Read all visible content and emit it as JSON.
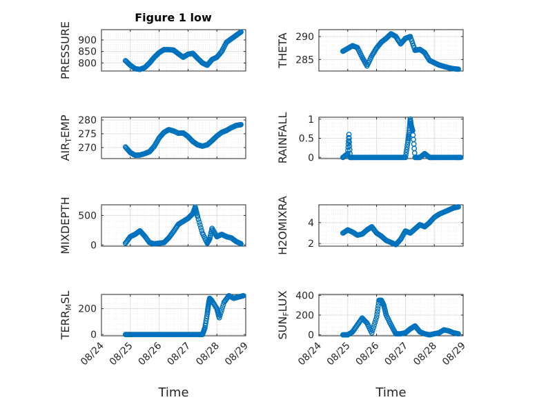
{
  "figure_title": "Figure 1 low",
  "marker_color": "#0072BD",
  "chart_data": [
    {
      "type": "scatter",
      "ylabel": "PRESSURE",
      "ylim": [
        765,
        945
      ],
      "yticks": [
        800,
        850,
        900
      ],
      "xlim": [
        "08/24",
        "08/29"
      ],
      "xtick_labels": [],
      "grid": true,
      "series": [
        {
          "x": [
            "08/24 20:00",
            "08/25 00:00",
            "08/25 04:00",
            "08/25 08:00",
            "08/25 12:00",
            "08/25 16:00",
            "08/25 20:00",
            "08/26 00:00",
            "08/26 04:00",
            "08/26 08:00",
            "08/26 12:00",
            "08/26 16:00",
            "08/26 20:00",
            "08/27 00:00",
            "08/27 04:00",
            "08/27 08:00",
            "08/27 12:00",
            "08/27 16:00",
            "08/27 20:00",
            "08/28 00:00",
            "08/28 04:00",
            "08/28 08:00",
            "08/28 12:00",
            "08/28 16:00",
            "08/28 20:00"
          ],
          "y": [
            810,
            790,
            775,
            772,
            780,
            800,
            825,
            845,
            858,
            858,
            856,
            840,
            825,
            838,
            842,
            820,
            800,
            790,
            815,
            825,
            850,
            890,
            905,
            920,
            935
          ]
        }
      ]
    },
    {
      "type": "scatter",
      "ylabel": "THETA",
      "ylim": [
        282.5,
        291.5
      ],
      "yticks": [
        285,
        290
      ],
      "xlim": [
        "08/24",
        "08/29"
      ],
      "xtick_labels": [],
      "grid": true,
      "series": [
        {
          "x": [
            "08/24 20:00",
            "08/25 00:00",
            "08/25 04:00",
            "08/25 08:00",
            "08/25 12:00",
            "08/25 16:00",
            "08/25 20:00",
            "08/26 00:00",
            "08/26 04:00",
            "08/26 08:00",
            "08/26 12:00",
            "08/26 16:00",
            "08/26 20:00",
            "08/27 00:00",
            "08/27 04:00",
            "08/27 08:00",
            "08/27 12:00",
            "08/27 16:00",
            "08/27 20:00",
            "08/28 00:00",
            "08/28 04:00",
            "08/28 08:00",
            "08/28 12:00",
            "08/28 16:00",
            "08/28 20:00"
          ],
          "y": [
            286.8,
            287.4,
            288.0,
            287.6,
            285.5,
            283.6,
            285.8,
            287.5,
            288.8,
            289.6,
            290.6,
            290.0,
            288.4,
            289.6,
            290.0,
            287.0,
            287.2,
            286.5,
            284.8,
            284.3,
            283.8,
            283.5,
            283.2,
            283.0,
            282.9
          ]
        }
      ]
    },
    {
      "type": "scatter",
      "ylabel": "AIR_TEMP",
      "ylim": [
        266,
        281
      ],
      "yticks": [
        270,
        275,
        280
      ],
      "xlim": [
        "08/24",
        "08/29"
      ],
      "xtick_labels": [],
      "grid": true,
      "series": [
        {
          "x": [
            "08/24 20:00",
            "08/25 00:00",
            "08/25 04:00",
            "08/25 08:00",
            "08/25 12:00",
            "08/25 16:00",
            "08/25 20:00",
            "08/26 00:00",
            "08/26 04:00",
            "08/26 08:00",
            "08/26 12:00",
            "08/26 16:00",
            "08/26 20:00",
            "08/27 00:00",
            "08/27 04:00",
            "08/27 08:00",
            "08/27 12:00",
            "08/27 16:00",
            "08/27 20:00",
            "08/28 00:00",
            "08/28 04:00",
            "08/28 08:00",
            "08/28 12:00",
            "08/28 16:00",
            "08/28 20:00"
          ],
          "y": [
            270.2,
            268.2,
            267.2,
            267.3,
            267.8,
            268.5,
            270.5,
            273.5,
            275.5,
            276.5,
            276.0,
            275.2,
            275.3,
            274.0,
            272.2,
            271.0,
            270.5,
            271.0,
            272.5,
            274.2,
            275.5,
            276.2,
            277.2,
            278.0,
            278.3
          ]
        }
      ]
    },
    {
      "type": "scatter",
      "ylabel": "RAINFALL",
      "ylim": [
        -0.03,
        1.05
      ],
      "yticks": [
        0,
        0.5,
        1
      ],
      "xlim": [
        "08/24",
        "08/29"
      ],
      "xtick_labels": [],
      "grid": true,
      "series": [
        {
          "x": [
            "08/24 20:00",
            "08/25 00:00",
            "08/25 01:00",
            "08/25 02:00",
            "08/25 06:00",
            "08/25 12:00",
            "08/25 18:00",
            "08/26 00:00",
            "08/26 06:00",
            "08/26 12:00",
            "08/26 18:00",
            "08/27 00:00",
            "08/27 02:00",
            "08/27 03:00",
            "08/27 04:00",
            "08/27 05:00",
            "08/27 06:00",
            "08/27 08:00",
            "08/27 12:00",
            "08/27 16:00",
            "08/27 20:00",
            "08/28 00:00",
            "08/28 06:00",
            "08/28 12:00",
            "08/28 18:00",
            "08/28 22:00"
          ],
          "y": [
            0,
            0.1,
            0.6,
            0,
            0,
            0,
            0,
            0,
            0,
            0,
            0,
            0,
            0.4,
            0.65,
            1.0,
            0.8,
            0.7,
            0,
            0,
            0.1,
            0,
            0,
            0,
            0,
            0,
            0
          ]
        }
      ]
    },
    {
      "type": "scatter",
      "ylabel": "MIXDEPTH",
      "ylim": [
        -20,
        680
      ],
      "yticks": [
        0,
        500
      ],
      "xlim": [
        "08/24",
        "08/29"
      ],
      "xtick_labels": [],
      "grid": true,
      "series": [
        {
          "x": [
            "08/24 20:00",
            "08/25 00:00",
            "08/25 04:00",
            "08/25 08:00",
            "08/25 12:00",
            "08/25 16:00",
            "08/25 20:00",
            "08/26 00:00",
            "08/26 04:00",
            "08/26 08:00",
            "08/26 12:00",
            "08/26 16:00",
            "08/26 20:00",
            "08/27 00:00",
            "08/27 04:00",
            "08/27 06:00",
            "08/27 08:00",
            "08/27 12:00",
            "08/27 16:00",
            "08/27 18:00",
            "08/27 20:00",
            "08/28 00:00",
            "08/28 04:00",
            "08/28 08:00",
            "08/28 12:00",
            "08/28 16:00",
            "08/28 20:00"
          ],
          "y": [
            30,
            140,
            180,
            240,
            150,
            40,
            20,
            30,
            40,
            120,
            230,
            350,
            400,
            450,
            530,
            640,
            480,
            200,
            30,
            100,
            280,
            140,
            180,
            140,
            120,
            60,
            20
          ]
        }
      ]
    },
    {
      "type": "scatter",
      "ylabel": "H2OMIXRA",
      "ylim": [
        1.75,
        5.7
      ],
      "yticks": [
        2,
        4
      ],
      "xlim": [
        "08/24",
        "08/29"
      ],
      "xtick_labels": [],
      "grid": true,
      "series": [
        {
          "x": [
            "08/24 20:00",
            "08/25 00:00",
            "08/25 04:00",
            "08/25 08:00",
            "08/25 12:00",
            "08/25 16:00",
            "08/25 20:00",
            "08/26 00:00",
            "08/26 04:00",
            "08/26 08:00",
            "08/26 12:00",
            "08/26 16:00",
            "08/26 20:00",
            "08/27 00:00",
            "08/27 04:00",
            "08/27 08:00",
            "08/27 12:00",
            "08/27 16:00",
            "08/27 20:00",
            "08/28 00:00",
            "08/28 04:00",
            "08/28 08:00",
            "08/28 12:00",
            "08/28 16:00",
            "08/28 20:00"
          ],
          "y": [
            3.0,
            3.3,
            3.1,
            2.8,
            2.9,
            3.3,
            3.6,
            3.0,
            2.7,
            2.3,
            2.1,
            1.9,
            2.4,
            3.2,
            3.0,
            3.4,
            3.8,
            3.6,
            4.0,
            4.5,
            4.8,
            5.0,
            5.2,
            5.4,
            5.5
          ]
        }
      ]
    },
    {
      "type": "scatter",
      "ylabel": "TERR_MSL",
      "ylim": [
        -10,
        310
      ],
      "yticks": [
        0,
        200
      ],
      "xlim": [
        "08/24",
        "08/29"
      ],
      "xtick_labels": [
        "08/24",
        "08/25",
        "08/26",
        "08/27",
        "08/28",
        "08/29"
      ],
      "xlabel": "Time",
      "grid": true,
      "series": [
        {
          "x": [
            "08/24 20:00",
            "08/25 00:00",
            "08/25 06:00",
            "08/25 12:00",
            "08/25 18:00",
            "08/26 00:00",
            "08/26 06:00",
            "08/26 12:00",
            "08/26 18:00",
            "08/27 00:00",
            "08/27 06:00",
            "08/27 12:00",
            "08/27 14:00",
            "08/27 16:00",
            "08/27 17:00",
            "08/27 18:00",
            "08/27 20:00",
            "08/28 00:00",
            "08/28 02:00",
            "08/28 06:00",
            "08/28 10:00",
            "08/28 14:00",
            "08/28 18:00",
            "08/28 22:00"
          ],
          "y": [
            0,
            0,
            0,
            0,
            0,
            0,
            0,
            0,
            0,
            0,
            0,
            0,
            50,
            160,
            230,
            280,
            260,
            200,
            130,
            250,
            300,
            280,
            290,
            300
          ]
        }
      ]
    },
    {
      "type": "scatter",
      "ylabel": "SUN_FLUX",
      "ylim": [
        -10,
        410
      ],
      "yticks": [
        0,
        200,
        400
      ],
      "xlim": [
        "08/24",
        "08/29"
      ],
      "xtick_labels": [
        "08/24",
        "08/25",
        "08/26",
        "08/27",
        "08/28",
        "08/29"
      ],
      "xlabel": "Time",
      "grid": true,
      "series": [
        {
          "x": [
            "08/24 20:00",
            "08/25 00:00",
            "08/25 04:00",
            "08/25 08:00",
            "08/25 12:00",
            "08/25 16:00",
            "08/25 20:00",
            "08/26 00:00",
            "08/26 02:00",
            "08/26 04:00",
            "08/26 06:00",
            "08/26 08:00",
            "08/26 12:00",
            "08/26 16:00",
            "08/26 20:00",
            "08/27 00:00",
            "08/27 04:00",
            "08/27 08:00",
            "08/27 12:00",
            "08/27 16:00",
            "08/27 20:00",
            "08/28 00:00",
            "08/28 04:00",
            "08/28 08:00",
            "08/28 12:00",
            "08/28 16:00",
            "08/28 20:00"
          ],
          "y": [
            0,
            0,
            30,
            100,
            170,
            120,
            20,
            180,
            350,
            350,
            300,
            200,
            100,
            10,
            10,
            20,
            60,
            90,
            30,
            10,
            0,
            10,
            20,
            50,
            40,
            20,
            10
          ]
        }
      ]
    }
  ]
}
